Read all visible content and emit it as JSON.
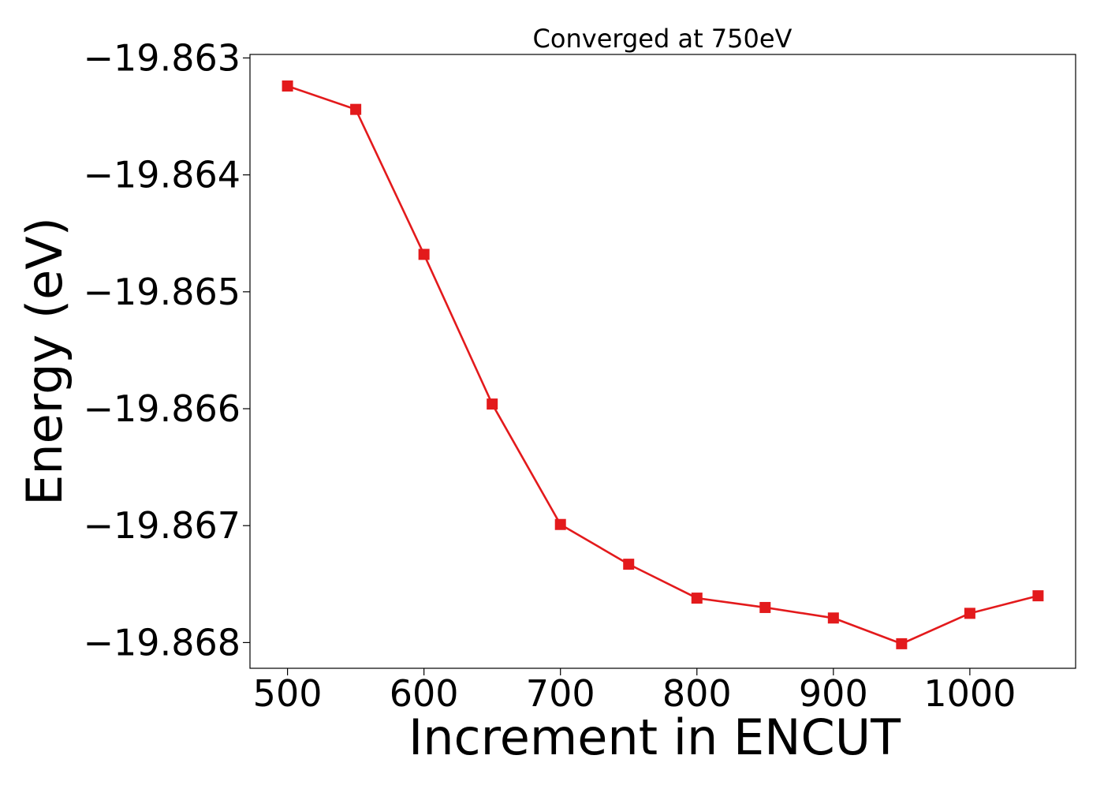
{
  "chart_data": {
    "type": "line",
    "title": "Converged at 750eV",
    "xlabel": "Increment in ENCUT",
    "ylabel": "Energy (eV)",
    "xlim": [
      472.5,
      1077.5
    ],
    "ylim": [
      -19.86822,
      -19.86297
    ],
    "x_ticks": [
      500,
      600,
      700,
      800,
      900,
      1000
    ],
    "x_tick_labels": [
      "500",
      "600",
      "700",
      "800",
      "900",
      "1000"
    ],
    "y_ticks": [
      -19.863,
      -19.864,
      -19.865,
      -19.866,
      -19.867,
      -19.868
    ],
    "y_tick_labels": [
      "−19.863",
      "−19.864",
      "−19.865",
      "−19.866",
      "−19.867",
      "−19.868"
    ],
    "grid": false,
    "marker": "square",
    "series": [
      {
        "color": "#e31a1c",
        "x": [
          500,
          550,
          600,
          650,
          700,
          750,
          800,
          850,
          900,
          950,
          1000,
          1050
        ],
        "y": [
          -19.86324,
          -19.86344,
          -19.86468,
          -19.86596,
          -19.86699,
          -19.86733,
          -19.86762,
          -19.8677,
          -19.86779,
          -19.86801,
          -19.86775,
          -19.8676
        ]
      }
    ]
  }
}
